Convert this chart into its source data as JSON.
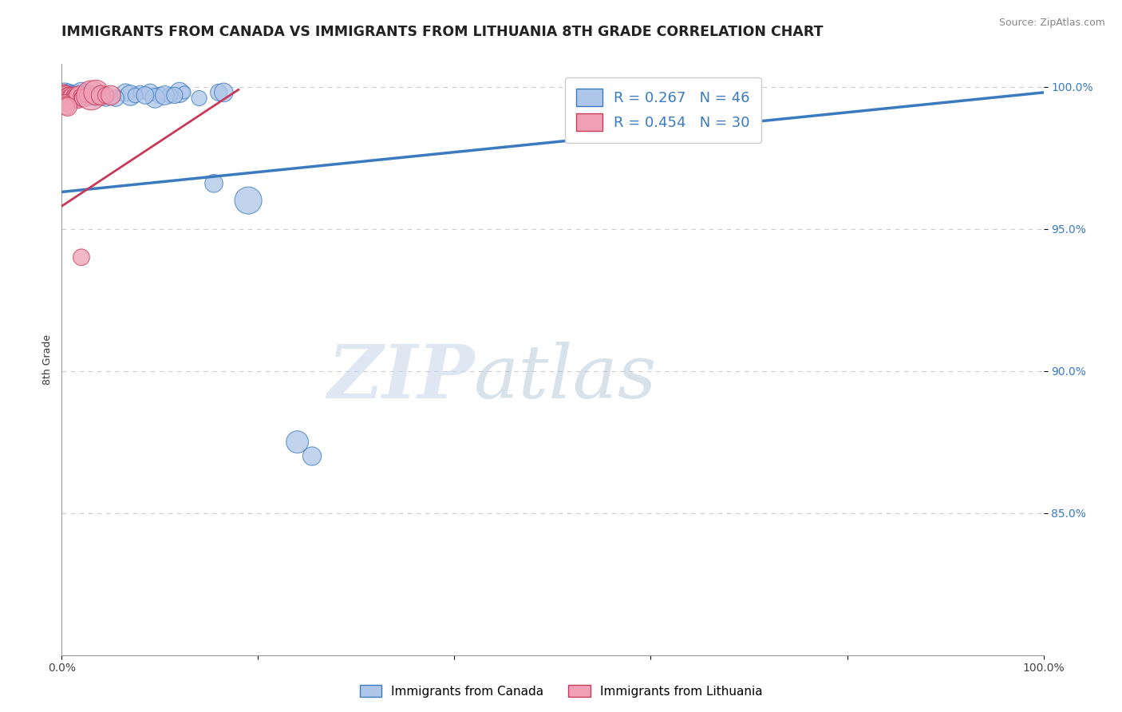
{
  "title": "IMMIGRANTS FROM CANADA VS IMMIGRANTS FROM LITHUANIA 8TH GRADE CORRELATION CHART",
  "source": "Source: ZipAtlas.com",
  "ylabel": "8th Grade",
  "legend_canada": "Immigrants from Canada",
  "legend_lithuania": "Immigrants from Lithuania",
  "R_canada": 0.267,
  "N_canada": 46,
  "R_lithuania": 0.454,
  "N_lithuania": 30,
  "canada_color": "#aec6e8",
  "lithuania_color": "#f0a0b5",
  "trend_canada_color": "#3a7abf",
  "trend_lithuania_color": "#c93a5a",
  "tick_color": "#3a7abf",
  "background_color": "#ffffff",
  "watermark_zip": "ZIP",
  "watermark_atlas": "atlas",
  "canada_points": [
    [
      0.002,
      0.998
    ],
    [
      0.003,
      0.998
    ],
    [
      0.004,
      0.997
    ],
    [
      0.005,
      0.997
    ],
    [
      0.006,
      0.997
    ],
    [
      0.007,
      0.998
    ],
    [
      0.008,
      0.996
    ],
    [
      0.009,
      0.997
    ],
    [
      0.01,
      0.998
    ],
    [
      0.011,
      0.997
    ],
    [
      0.012,
      0.997
    ],
    [
      0.013,
      0.997
    ],
    [
      0.015,
      0.998
    ],
    [
      0.016,
      0.997
    ],
    [
      0.018,
      0.998
    ],
    [
      0.02,
      0.998
    ],
    [
      0.022,
      0.997
    ],
    [
      0.025,
      0.998
    ],
    [
      0.028,
      0.997
    ],
    [
      0.06,
      0.997
    ],
    [
      0.065,
      0.998
    ],
    [
      0.07,
      0.997
    ],
    [
      0.08,
      0.998
    ],
    [
      0.09,
      0.998
    ],
    [
      0.12,
      0.998
    ],
    [
      0.125,
      0.998
    ],
    [
      0.16,
      0.998
    ],
    [
      0.165,
      0.998
    ],
    [
      0.04,
      0.997
    ],
    [
      0.045,
      0.996
    ],
    [
      0.05,
      0.996
    ],
    [
      0.055,
      0.996
    ],
    [
      0.035,
      0.996
    ],
    [
      0.1,
      0.997
    ],
    [
      0.11,
      0.997
    ],
    [
      0.095,
      0.996
    ],
    [
      0.105,
      0.997
    ],
    [
      0.075,
      0.997
    ],
    [
      0.085,
      0.997
    ],
    [
      0.03,
      0.997
    ],
    [
      0.115,
      0.997
    ],
    [
      0.14,
      0.996
    ],
    [
      0.155,
      0.966
    ],
    [
      0.19,
      0.96
    ],
    [
      0.24,
      0.875
    ],
    [
      0.255,
      0.87
    ]
  ],
  "lithuania_points": [
    [
      0.002,
      0.998
    ],
    [
      0.003,
      0.997
    ],
    [
      0.004,
      0.997
    ],
    [
      0.005,
      0.997
    ],
    [
      0.006,
      0.997
    ],
    [
      0.007,
      0.997
    ],
    [
      0.008,
      0.996
    ],
    [
      0.009,
      0.996
    ],
    [
      0.01,
      0.997
    ],
    [
      0.011,
      0.997
    ],
    [
      0.012,
      0.996
    ],
    [
      0.013,
      0.996
    ],
    [
      0.014,
      0.997
    ],
    [
      0.015,
      0.996
    ],
    [
      0.016,
      0.996
    ],
    [
      0.017,
      0.997
    ],
    [
      0.018,
      0.997
    ],
    [
      0.02,
      0.996
    ],
    [
      0.022,
      0.996
    ],
    [
      0.025,
      0.997
    ],
    [
      0.03,
      0.997
    ],
    [
      0.035,
      0.998
    ],
    [
      0.04,
      0.997
    ],
    [
      0.045,
      0.997
    ],
    [
      0.05,
      0.997
    ],
    [
      0.003,
      0.995
    ],
    [
      0.004,
      0.994
    ],
    [
      0.005,
      0.993
    ],
    [
      0.006,
      0.993
    ],
    [
      0.02,
      0.94
    ]
  ],
  "xlim": [
    0.0,
    1.0
  ],
  "ylim": [
    0.8,
    1.008
  ],
  "ytick_vals": [
    0.85,
    0.9,
    0.95,
    1.0
  ],
  "ytick_labels": [
    "85.0%",
    "90.0%",
    "95.0%",
    "100.0%"
  ],
  "grid_color": "#cccccc",
  "title_fontsize": 12.5,
  "axis_label_fontsize": 9,
  "tick_fontsize": 10,
  "canada_trend_x": [
    0.0,
    1.0
  ],
  "canada_trend_y": [
    0.963,
    0.998
  ],
  "lith_trend_x": [
    0.0,
    0.18
  ],
  "lith_trend_y": [
    0.958,
    0.999
  ]
}
